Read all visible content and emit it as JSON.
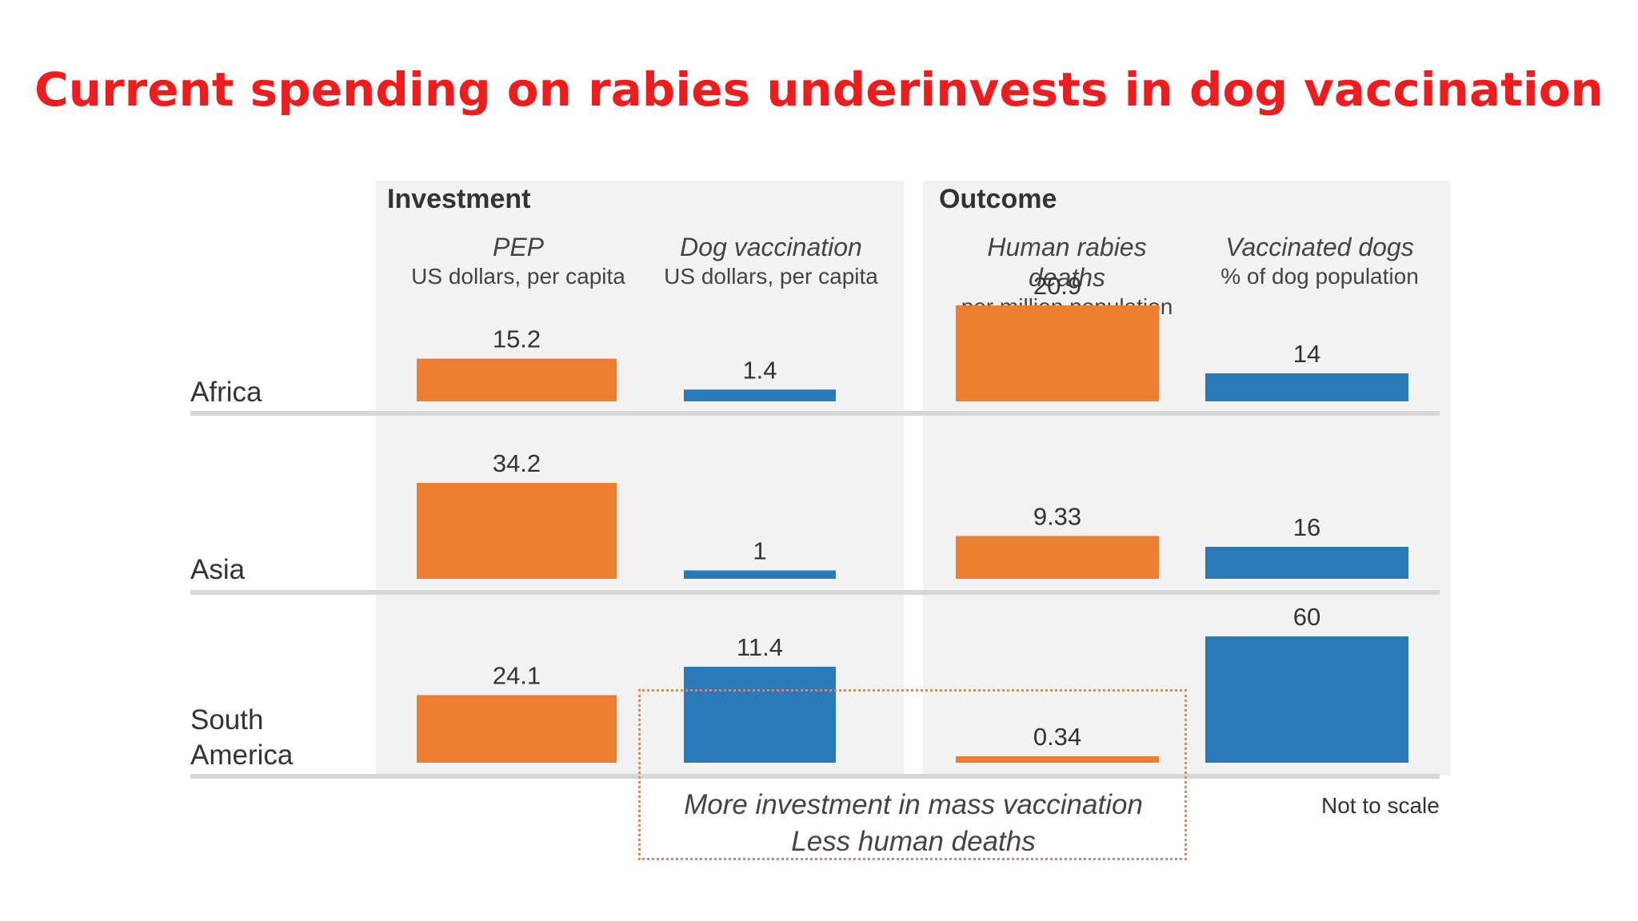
{
  "title": "Current spending on rabies underinvests in dog vaccination",
  "colors": {
    "investment": "#ed7d31",
    "outcome_blue": "#2a7ab9",
    "title": "#ee1c1c"
  },
  "panels": {
    "investment": "Investment",
    "outcome": "Outcome"
  },
  "columns": [
    {
      "header": "PEP",
      "unit": "US dollars, per capita"
    },
    {
      "header": "Dog vaccination",
      "unit": "US dollars, per capita"
    },
    {
      "header": "Human rabies deaths",
      "unit": "per million population"
    },
    {
      "header": "Vaccinated dogs",
      "unit": "% of dog population"
    }
  ],
  "regions": [
    {
      "label": "Africa"
    },
    {
      "label": "Asia"
    },
    {
      "label": "South\nAmerica"
    }
  ],
  "note": "More investment in mass vaccination\nLess human deaths",
  "footnote": "Not to scale",
  "chart_data": {
    "type": "bar",
    "categories": [
      "Africa",
      "Asia",
      "South America"
    ],
    "series": [
      {
        "name": "PEP",
        "values": [
          15.2,
          34.2,
          24.1
        ],
        "labels": [
          "15.2",
          "34.2",
          "24.1"
        ],
        "color": "#ed7d31"
      },
      {
        "name": "Dog vaccination",
        "values": [
          1.4,
          1,
          11.4
        ],
        "labels": [
          "1.4",
          "1",
          "11.4"
        ],
        "color": "#2a7ab9"
      },
      {
        "name": "Human rabies deaths",
        "values": [
          20.9,
          9.33,
          0.34
        ],
        "labels": [
          "20.9",
          "9.33",
          "0.34"
        ],
        "color": "#ed7d31"
      },
      {
        "name": "Vaccinated dogs",
        "values": [
          14,
          16,
          60
        ],
        "labels": [
          "14",
          "16",
          "60"
        ],
        "color": "#2a7ab9"
      }
    ],
    "scaled": false
  }
}
